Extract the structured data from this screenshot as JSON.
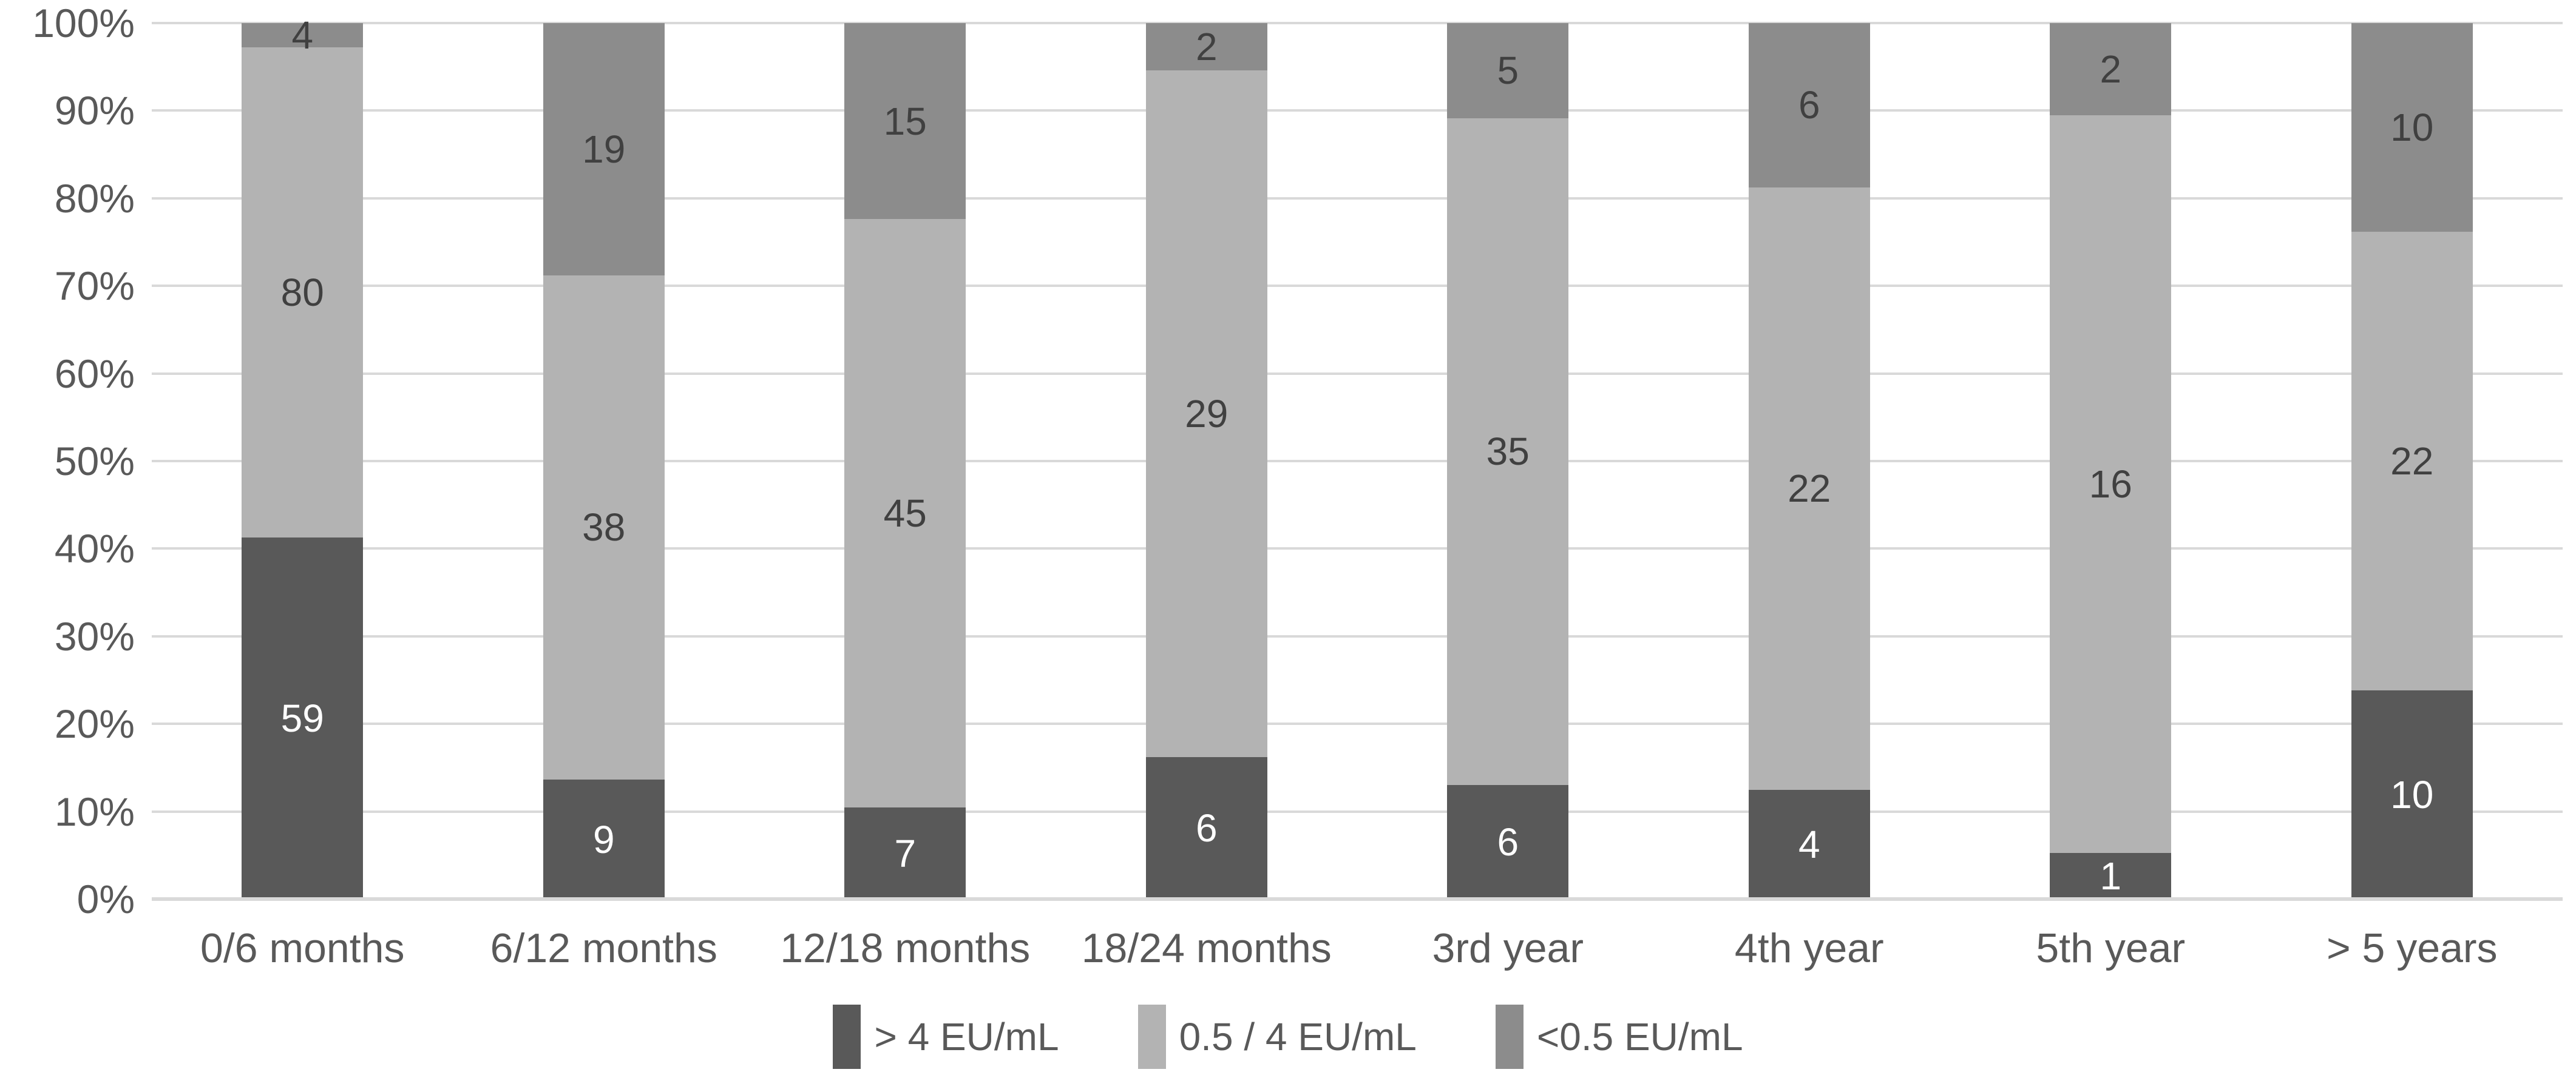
{
  "chart_data": {
    "type": "bar",
    "stacked": true,
    "stacking": "percent",
    "title": "",
    "xlabel": "",
    "ylabel": "",
    "categories": [
      "0/6 months",
      "6/12 months",
      "12/18 months",
      "18/24 months",
      "3rd year",
      "4th year",
      "5th year",
      "> 5 years"
    ],
    "series": [
      {
        "name": "> 4 EU/mL",
        "color": "#595959",
        "label_color": "#ffffff",
        "values": [
          59,
          9,
          7,
          6,
          6,
          4,
          1,
          10
        ]
      },
      {
        "name": "0.5 / 4 EU/mL",
        "color": "#b3b3b3",
        "label_color": "#404040",
        "values": [
          80,
          38,
          45,
          29,
          35,
          22,
          16,
          22
        ]
      },
      {
        "name": "<0.5 EU/mL",
        "color": "#8c8c8c",
        "label_color": "#404040",
        "values": [
          4,
          19,
          15,
          2,
          5,
          6,
          2,
          10
        ]
      }
    ],
    "y_axis": {
      "min": 0,
      "max": 100,
      "tick_step": 10,
      "tick_labels": [
        "0%",
        "10%",
        "20%",
        "30%",
        "40%",
        "50%",
        "60%",
        "70%",
        "80%",
        "90%",
        "100%"
      ]
    },
    "grid": true,
    "gridline_color": "#d9d9d9",
    "axis_text_color": "#595959",
    "background_color": "#ffffff",
    "legend_position": "bottom",
    "data_labels_shown": true
  }
}
